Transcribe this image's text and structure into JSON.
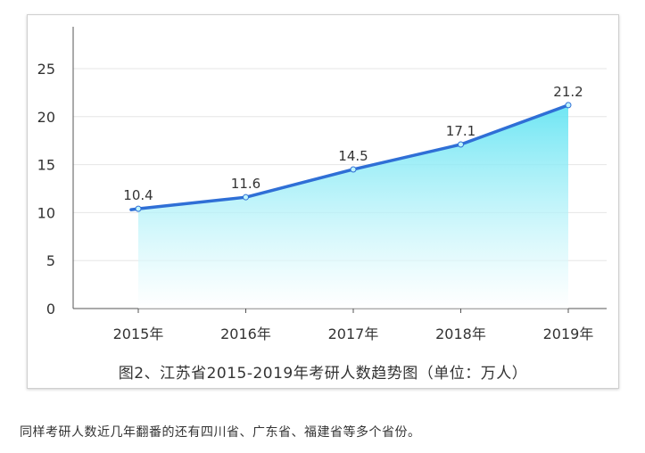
{
  "chart_data": {
    "type": "area",
    "categories": [
      "2015年",
      "2016年",
      "2017年",
      "2018年",
      "2019年"
    ],
    "values": [
      10.4,
      11.6,
      14.5,
      17.1,
      21.2
    ],
    "data_labels": [
      "10.4",
      "11.6",
      "14.5",
      "17.1",
      "21.2"
    ],
    "yticks": [
      "0",
      "5",
      "10",
      "15",
      "20",
      "25"
    ],
    "ytick_values": [
      0,
      5,
      10,
      15,
      20,
      25
    ],
    "ylim": [
      0,
      25
    ],
    "grid": true,
    "caption": "图2、江苏省2015-2019年考研人数趋势图（单位：万人）",
    "colors": {
      "line": "#2f6fd6",
      "area_top": "#5fe3f2",
      "area_bottom": "#ffffff",
      "grid": "#e6e6e6"
    }
  },
  "body_text": "同样考研人数近几年翻番的还有四川省、广东省、福建省等多个省份。"
}
